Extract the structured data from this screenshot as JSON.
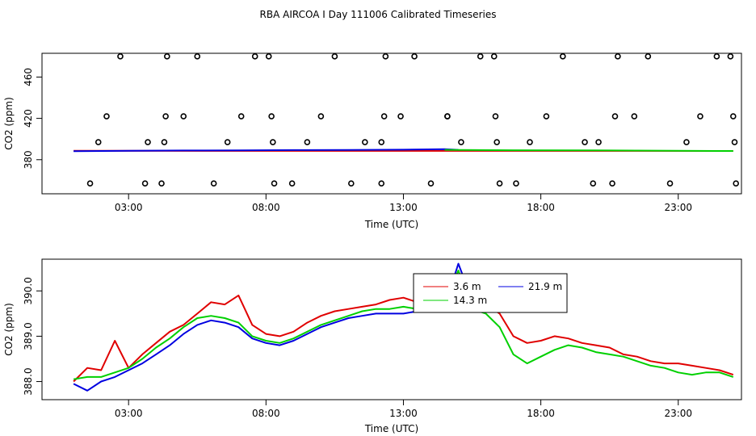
{
  "title": "RBA AIRCOA I  Day 111006  Calibrated Timeseries",
  "colors": {
    "s1": "#e00000",
    "s2": "#0000e0",
    "s3": "#00d000",
    "frame": "#000000"
  },
  "chart_data": [
    {
      "type": "scatter",
      "name": "upper-panel",
      "xlabel": "Time (UTC)",
      "ylabel": "CO2 (ppm)",
      "xlim": [
        -0.15,
        25.3
      ],
      "ylim": [
        347,
        483
      ],
      "xticks": [
        {
          "v": 3,
          "label": "03:00"
        },
        {
          "v": 8,
          "label": "08:00"
        },
        {
          "v": 13,
          "label": "13:00"
        },
        {
          "v": 18,
          "label": "18:00"
        },
        {
          "v": 23,
          "label": "23:00"
        }
      ],
      "yticks": [
        {
          "v": 380,
          "label": "380"
        },
        {
          "v": 420,
          "label": "420"
        },
        {
          "v": 460,
          "label": "460"
        }
      ],
      "circle_points": [
        [
          1.6,
          357
        ],
        [
          1.9,
          397
        ],
        [
          2.2,
          422
        ],
        [
          2.7,
          480
        ],
        [
          3.6,
          357
        ],
        [
          3.7,
          397
        ],
        [
          4.2,
          357
        ],
        [
          4.3,
          397
        ],
        [
          4.35,
          422
        ],
        [
          4.4,
          480
        ],
        [
          5.0,
          422
        ],
        [
          5.5,
          480
        ],
        [
          6.1,
          357
        ],
        [
          6.6,
          397
        ],
        [
          7.1,
          422
        ],
        [
          7.6,
          480
        ],
        [
          8.1,
          480
        ],
        [
          8.2,
          422
        ],
        [
          8.25,
          397
        ],
        [
          8.3,
          357
        ],
        [
          8.95,
          357
        ],
        [
          9.5,
          397
        ],
        [
          10.0,
          422
        ],
        [
          10.5,
          480
        ],
        [
          11.1,
          357
        ],
        [
          11.6,
          397
        ],
        [
          12.2,
          357
        ],
        [
          12.2,
          397
        ],
        [
          12.3,
          422
        ],
        [
          12.35,
          480
        ],
        [
          12.9,
          422
        ],
        [
          13.4,
          480
        ],
        [
          14.0,
          357
        ],
        [
          14.6,
          422
        ],
        [
          14.6,
          422
        ],
        [
          15.1,
          397
        ],
        [
          15.8,
          480
        ],
        [
          16.3,
          480
        ],
        [
          16.35,
          422
        ],
        [
          16.4,
          397
        ],
        [
          16.5,
          357
        ],
        [
          17.1,
          357
        ],
        [
          17.6,
          397
        ],
        [
          18.2,
          422
        ],
        [
          18.8,
          480
        ],
        [
          19.6,
          397
        ],
        [
          19.9,
          357
        ],
        [
          20.1,
          397
        ],
        [
          20.6,
          357
        ],
        [
          20.7,
          422
        ],
        [
          20.8,
          480
        ],
        [
          21.4,
          422
        ],
        [
          21.9,
          480
        ],
        [
          22.7,
          357
        ],
        [
          23.3,
          397
        ],
        [
          23.8,
          422
        ],
        [
          24.4,
          480
        ],
        [
          24.9,
          480
        ],
        [
          25.0,
          422
        ],
        [
          25.05,
          397
        ],
        [
          25.1,
          357
        ]
      ],
      "series": [
        {
          "name": "3.6 m",
          "color": "#e00000",
          "x": [
            1,
            25
          ],
          "y": [
            388.6,
            388.5
          ]
        },
        {
          "name": "21.9 m",
          "color": "#0000e0",
          "x": [
            1,
            3,
            5,
            7,
            9,
            11,
            13,
            14.5,
            15
          ],
          "y": [
            388.3,
            388.6,
            388.9,
            389.0,
            389.3,
            389.4,
            389.7,
            390.2,
            389.5
          ]
        },
        {
          "name": "14.3 m",
          "color": "#00d000",
          "x": [
            14.5,
            17,
            20,
            23,
            25
          ],
          "y": [
            389.5,
            389.1,
            389.0,
            388.6,
            388.4
          ]
        }
      ]
    },
    {
      "type": "line",
      "name": "lower-panel",
      "xlabel": "Time (UTC)",
      "ylabel": "CO2 (ppm)",
      "xlim": [
        -0.15,
        25.3
      ],
      "ylim": [
        387.6,
        390.7
      ],
      "xticks": [
        {
          "v": 3,
          "label": "03:00"
        },
        {
          "v": 8,
          "label": "08:00"
        },
        {
          "v": 13,
          "label": "13:00"
        },
        {
          "v": 18,
          "label": "18:00"
        },
        {
          "v": 23,
          "label": "23:00"
        }
      ],
      "yticks": [
        {
          "v": 388,
          "label": "388.0"
        },
        {
          "v": 389,
          "label": "389.0"
        },
        {
          "v": 390,
          "label": "390.0"
        }
      ],
      "legend": [
        "3.6 m",
        "21.9 m",
        "14.3 m"
      ],
      "series": [
        {
          "name": "3.6 m",
          "color": "#e00000",
          "x": [
            1.0,
            1.5,
            2.0,
            2.5,
            3.0,
            3.5,
            4.0,
            4.5,
            5.0,
            5.5,
            6.0,
            6.5,
            7.0,
            7.5,
            8.0,
            8.5,
            9.0,
            9.5,
            10.0,
            10.5,
            11.0,
            11.5,
            12.0,
            12.5,
            13.0,
            13.5,
            14.0,
            14.5,
            15.0,
            15.5,
            16.0,
            16.5,
            17.0,
            17.5,
            18.0,
            18.5,
            19.0,
            19.5,
            20.0,
            20.5,
            21.0,
            21.5,
            22.0,
            22.5,
            23.0,
            23.5,
            24.0,
            24.5,
            25.0
          ],
          "y": [
            388.0,
            388.3,
            388.25,
            388.9,
            388.3,
            388.6,
            388.85,
            389.1,
            389.25,
            389.5,
            389.75,
            389.7,
            389.9,
            389.25,
            389.05,
            389.0,
            389.1,
            389.3,
            389.45,
            389.55,
            389.6,
            389.65,
            389.7,
            389.8,
            389.85,
            389.75,
            389.9,
            389.7,
            389.8,
            389.65,
            389.7,
            389.5,
            389.0,
            388.85,
            388.9,
            389.0,
            388.95,
            388.85,
            388.8,
            388.75,
            388.6,
            388.55,
            388.45,
            388.4,
            388.4,
            388.35,
            388.3,
            388.25,
            388.15
          ]
        },
        {
          "name": "21.9 m",
          "color": "#0000e0",
          "x": [
            1.0,
            1.5,
            2.0,
            2.5,
            3.0,
            3.5,
            4.0,
            4.5,
            5.0,
            5.5,
            6.0,
            6.5,
            7.0,
            7.5,
            8.0,
            8.5,
            9.0,
            9.5,
            10.0,
            10.5,
            11.0,
            11.5,
            12.0,
            12.5,
            13.0,
            13.5,
            14.0,
            14.5,
            15.0,
            15.5,
            16.0
          ],
          "y": [
            387.95,
            387.8,
            388.0,
            388.1,
            388.25,
            388.4,
            388.6,
            388.8,
            389.05,
            389.25,
            389.35,
            389.3,
            389.2,
            388.95,
            388.85,
            388.8,
            388.9,
            389.05,
            389.2,
            389.3,
            389.4,
            389.45,
            389.5,
            389.5,
            389.5,
            389.55,
            389.6,
            389.65,
            390.6,
            389.8,
            389.55
          ]
        },
        {
          "name": "14.3 m",
          "color": "#00d000",
          "x": [
            1.0,
            1.5,
            2.0,
            2.5,
            3.0,
            3.5,
            4.0,
            4.5,
            5.0,
            5.5,
            6.0,
            6.5,
            7.0,
            7.5,
            8.0,
            8.5,
            9.0,
            9.5,
            10.0,
            10.5,
            11.0,
            11.5,
            12.0,
            12.5,
            13.0,
            13.5,
            14.0,
            14.5,
            15.0,
            15.5,
            16.0,
            16.5,
            17.0,
            17.5,
            18.0,
            18.5,
            19.0,
            19.5,
            20.0,
            20.5,
            21.0,
            21.5,
            22.0,
            22.5,
            23.0,
            23.5,
            24.0,
            24.5,
            25.0
          ],
          "y": [
            388.05,
            388.1,
            388.1,
            388.2,
            388.3,
            388.5,
            388.75,
            388.95,
            389.2,
            389.4,
            389.45,
            389.4,
            389.3,
            389.0,
            388.9,
            388.85,
            388.95,
            389.1,
            389.25,
            389.35,
            389.45,
            389.55,
            389.6,
            389.6,
            389.65,
            389.6,
            389.7,
            389.75,
            390.45,
            389.6,
            389.5,
            389.2,
            388.6,
            388.4,
            388.55,
            388.7,
            388.8,
            388.75,
            388.65,
            388.6,
            388.55,
            388.45,
            388.35,
            388.3,
            388.2,
            388.15,
            388.2,
            388.2,
            388.1
          ]
        }
      ]
    }
  ]
}
